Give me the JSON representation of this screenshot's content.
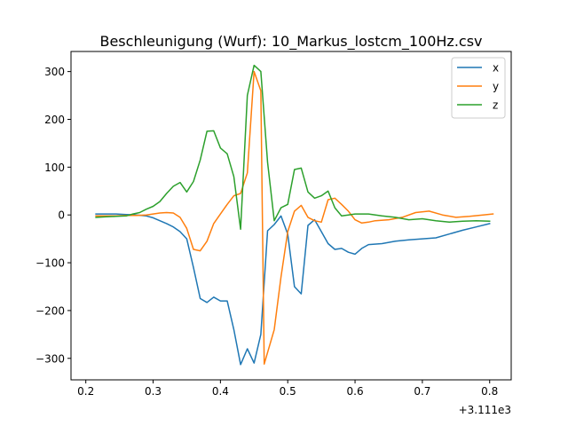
{
  "chart_data": {
    "type": "line",
    "title": "Beschleunigung (Wurf): 10_Markus_lostcm_100Hz.csv",
    "xlabel": "",
    "ylabel": "",
    "x_offset_label": "+3.111e3",
    "xlim": [
      0.178,
      0.832
    ],
    "ylim": [
      -345,
      342
    ],
    "x_ticks": [
      0.2,
      0.3,
      0.4,
      0.5,
      0.6,
      0.7,
      0.8
    ],
    "x_tick_labels": [
      "0.2",
      "0.3",
      "0.4",
      "0.5",
      "0.6",
      "0.7",
      "0.8"
    ],
    "y_ticks": [
      -300,
      -200,
      -100,
      0,
      100,
      200,
      300
    ],
    "y_tick_labels": [
      "−300",
      "−200",
      "−100",
      "0",
      "100",
      "200",
      "300"
    ],
    "grid": false,
    "legend_position": "top-right",
    "series": [
      {
        "name": "x",
        "color": "#1f77b4",
        "points": [
          [
            0.215,
            2
          ],
          [
            0.23,
            2
          ],
          [
            0.245,
            2
          ],
          [
            0.26,
            1
          ],
          [
            0.275,
            0
          ],
          [
            0.29,
            -2
          ],
          [
            0.3,
            -6
          ],
          [
            0.31,
            -12
          ],
          [
            0.32,
            -18
          ],
          [
            0.33,
            -25
          ],
          [
            0.34,
            -35
          ],
          [
            0.35,
            -50
          ],
          [
            0.36,
            -110
          ],
          [
            0.37,
            -175
          ],
          [
            0.38,
            -183
          ],
          [
            0.39,
            -172
          ],
          [
            0.4,
            -180
          ],
          [
            0.41,
            -180
          ],
          [
            0.42,
            -240
          ],
          [
            0.43,
            -313
          ],
          [
            0.44,
            -280
          ],
          [
            0.45,
            -310
          ],
          [
            0.46,
            -250
          ],
          [
            0.47,
            -33
          ],
          [
            0.48,
            -20
          ],
          [
            0.49,
            -2
          ],
          [
            0.5,
            -40
          ],
          [
            0.51,
            -150
          ],
          [
            0.52,
            -165
          ],
          [
            0.53,
            -22
          ],
          [
            0.54,
            -10
          ],
          [
            0.55,
            -35
          ],
          [
            0.56,
            -60
          ],
          [
            0.57,
            -72
          ],
          [
            0.58,
            -70
          ],
          [
            0.59,
            -78
          ],
          [
            0.6,
            -82
          ],
          [
            0.61,
            -70
          ],
          [
            0.62,
            -62
          ],
          [
            0.64,
            -60
          ],
          [
            0.66,
            -55
          ],
          [
            0.68,
            -52
          ],
          [
            0.7,
            -50
          ],
          [
            0.72,
            -48
          ],
          [
            0.74,
            -40
          ],
          [
            0.76,
            -32
          ],
          [
            0.78,
            -25
          ],
          [
            0.8,
            -18
          ]
        ]
      },
      {
        "name": "y",
        "color": "#ff7f0e",
        "points": [
          [
            0.215,
            -2
          ],
          [
            0.23,
            -2
          ],
          [
            0.245,
            -2
          ],
          [
            0.26,
            -1
          ],
          [
            0.275,
            -1
          ],
          [
            0.29,
            0
          ],
          [
            0.3,
            2
          ],
          [
            0.31,
            4
          ],
          [
            0.32,
            5
          ],
          [
            0.33,
            4
          ],
          [
            0.34,
            -5
          ],
          [
            0.35,
            -28
          ],
          [
            0.36,
            -72
          ],
          [
            0.37,
            -75
          ],
          [
            0.38,
            -55
          ],
          [
            0.39,
            -18
          ],
          [
            0.4,
            2
          ],
          [
            0.41,
            22
          ],
          [
            0.42,
            40
          ],
          [
            0.43,
            45
          ],
          [
            0.44,
            88
          ],
          [
            0.45,
            300
          ],
          [
            0.46,
            260
          ],
          [
            0.465,
            -312
          ],
          [
            0.48,
            -240
          ],
          [
            0.49,
            -130
          ],
          [
            0.5,
            -35
          ],
          [
            0.51,
            8
          ],
          [
            0.52,
            20
          ],
          [
            0.53,
            -5
          ],
          [
            0.54,
            -12
          ],
          [
            0.55,
            -15
          ],
          [
            0.56,
            32
          ],
          [
            0.57,
            35
          ],
          [
            0.58,
            22
          ],
          [
            0.59,
            8
          ],
          [
            0.6,
            -10
          ],
          [
            0.61,
            -17
          ],
          [
            0.62,
            -15
          ],
          [
            0.63,
            -12
          ],
          [
            0.65,
            -10
          ],
          [
            0.67,
            -5
          ],
          [
            0.69,
            5
          ],
          [
            0.71,
            8
          ],
          [
            0.73,
            0
          ],
          [
            0.75,
            -5
          ],
          [
            0.77,
            -3
          ],
          [
            0.79,
            0
          ],
          [
            0.805,
            2
          ]
        ]
      },
      {
        "name": "z",
        "color": "#2ca02c",
        "points": [
          [
            0.215,
            -5
          ],
          [
            0.23,
            -4
          ],
          [
            0.245,
            -3
          ],
          [
            0.26,
            -2
          ],
          [
            0.27,
            2
          ],
          [
            0.28,
            5
          ],
          [
            0.29,
            12
          ],
          [
            0.3,
            18
          ],
          [
            0.31,
            28
          ],
          [
            0.32,
            45
          ],
          [
            0.33,
            60
          ],
          [
            0.34,
            68
          ],
          [
            0.35,
            48
          ],
          [
            0.36,
            70
          ],
          [
            0.37,
            115
          ],
          [
            0.38,
            175
          ],
          [
            0.39,
            176
          ],
          [
            0.4,
            140
          ],
          [
            0.41,
            128
          ],
          [
            0.42,
            80
          ],
          [
            0.43,
            -30
          ],
          [
            0.44,
            250
          ],
          [
            0.45,
            313
          ],
          [
            0.46,
            300
          ],
          [
            0.47,
            110
          ],
          [
            0.48,
            -12
          ],
          [
            0.49,
            15
          ],
          [
            0.5,
            22
          ],
          [
            0.51,
            95
          ],
          [
            0.52,
            98
          ],
          [
            0.53,
            48
          ],
          [
            0.54,
            35
          ],
          [
            0.55,
            40
          ],
          [
            0.56,
            50
          ],
          [
            0.57,
            15
          ],
          [
            0.58,
            -2
          ],
          [
            0.59,
            0
          ],
          [
            0.6,
            2
          ],
          [
            0.62,
            2
          ],
          [
            0.64,
            -2
          ],
          [
            0.66,
            -5
          ],
          [
            0.68,
            -10
          ],
          [
            0.7,
            -8
          ],
          [
            0.72,
            -12
          ],
          [
            0.74,
            -15
          ],
          [
            0.76,
            -13
          ],
          [
            0.78,
            -12
          ],
          [
            0.8,
            -13
          ]
        ]
      }
    ]
  }
}
